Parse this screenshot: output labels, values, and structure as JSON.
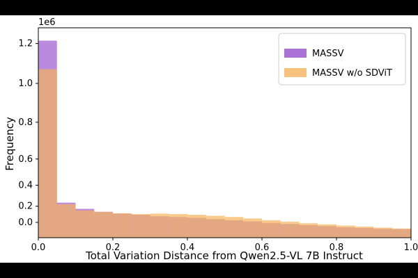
{
  "chart_data": {
    "type": "histogram",
    "title": "",
    "xlabel": "Total Variation Distance from Qwen2.5-VL 7B Instruct",
    "ylabel": "Frequency",
    "y_offset_text": "1e6",
    "xlim": [
      0,
      1
    ],
    "ylim": [
      0,
      1.42
    ],
    "x_ticks": [
      0.0,
      0.2,
      0.4,
      0.6,
      0.8,
      1.0
    ],
    "x_tick_labels": [
      "0.0",
      "0.2",
      "0.4",
      "0.6",
      "0.8",
      "1.0"
    ],
    "y_ticks": [
      0.0,
      0.2,
      0.4,
      0.6,
      0.8,
      1.0,
      1.2
    ],
    "y_tick_labels": [
      "0.0",
      "0.2",
      "0.4",
      "0.6",
      "0.8",
      "1.0",
      "1.2"
    ],
    "y_tick_positions": [
      0.073,
      0.15,
      0.25,
      0.375,
      0.55,
      0.735,
      0.925
    ],
    "bin_edges": [
      0,
      0.05,
      0.1,
      0.15,
      0.2,
      0.25,
      0.3,
      0.35,
      0.4,
      0.45,
      0.5,
      0.55,
      0.6,
      0.65,
      0.7,
      0.75,
      0.8,
      0.85,
      0.9,
      0.95,
      1.0
    ],
    "series": [
      {
        "name": "MASSV",
        "color": "#9b59d0",
        "values": [
          1.333,
          0.237,
          0.195,
          0.175,
          0.163,
          0.155,
          0.145,
          0.14,
          0.135,
          0.126,
          0.118,
          0.11,
          0.1,
          0.092,
          0.085,
          0.078,
          0.07,
          0.065,
          0.06,
          0.058
        ]
      },
      {
        "name": "MASSV w/o SDViT",
        "color": "#f5b35a",
        "values": [
          1.14,
          0.227,
          0.185,
          0.175,
          0.165,
          0.16,
          0.163,
          0.16,
          0.155,
          0.148,
          0.14,
          0.13,
          0.118,
          0.108,
          0.098,
          0.09,
          0.082,
          0.075,
          0.068,
          0.062
        ]
      }
    ],
    "legend": {
      "position": "top-right"
    },
    "grid": false
  }
}
